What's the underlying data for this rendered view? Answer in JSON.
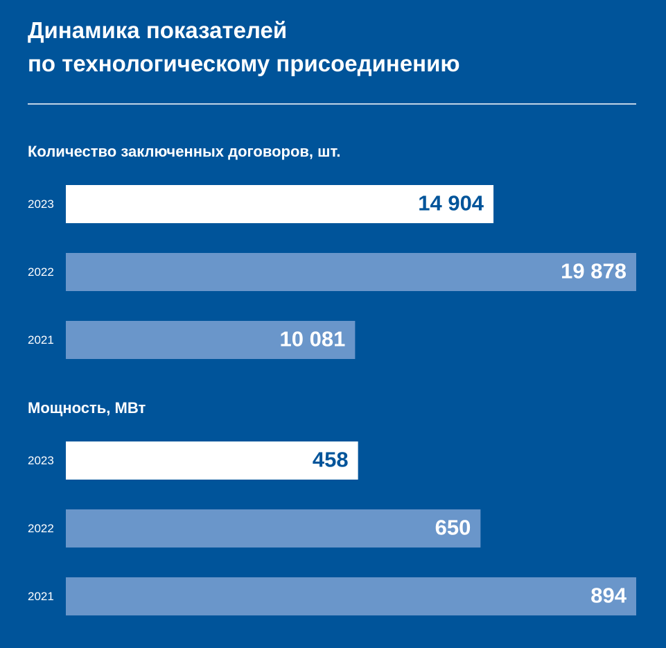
{
  "title": "Динамика показателей\nпо технологическому присоединению",
  "chart_data": [
    {
      "type": "hbar",
      "title": "Количество заключенных договоров, шт.",
      "categories": [
        "2023",
        "2022",
        "2021"
      ],
      "values": [
        14904,
        19878,
        10081
      ],
      "value_labels": [
        "14 904",
        "19 878",
        "10 081"
      ],
      "colors": [
        "#ffffff",
        "#6a96ca",
        "#6a96ca"
      ]
    },
    {
      "type": "hbar",
      "title": "Мощность, МВт",
      "categories": [
        "2023",
        "2022",
        "2021"
      ],
      "values": [
        458,
        650,
        894
      ],
      "colors": [
        "#ffffff",
        "#6a96ca",
        "#6a96ca"
      ]
    }
  ]
}
